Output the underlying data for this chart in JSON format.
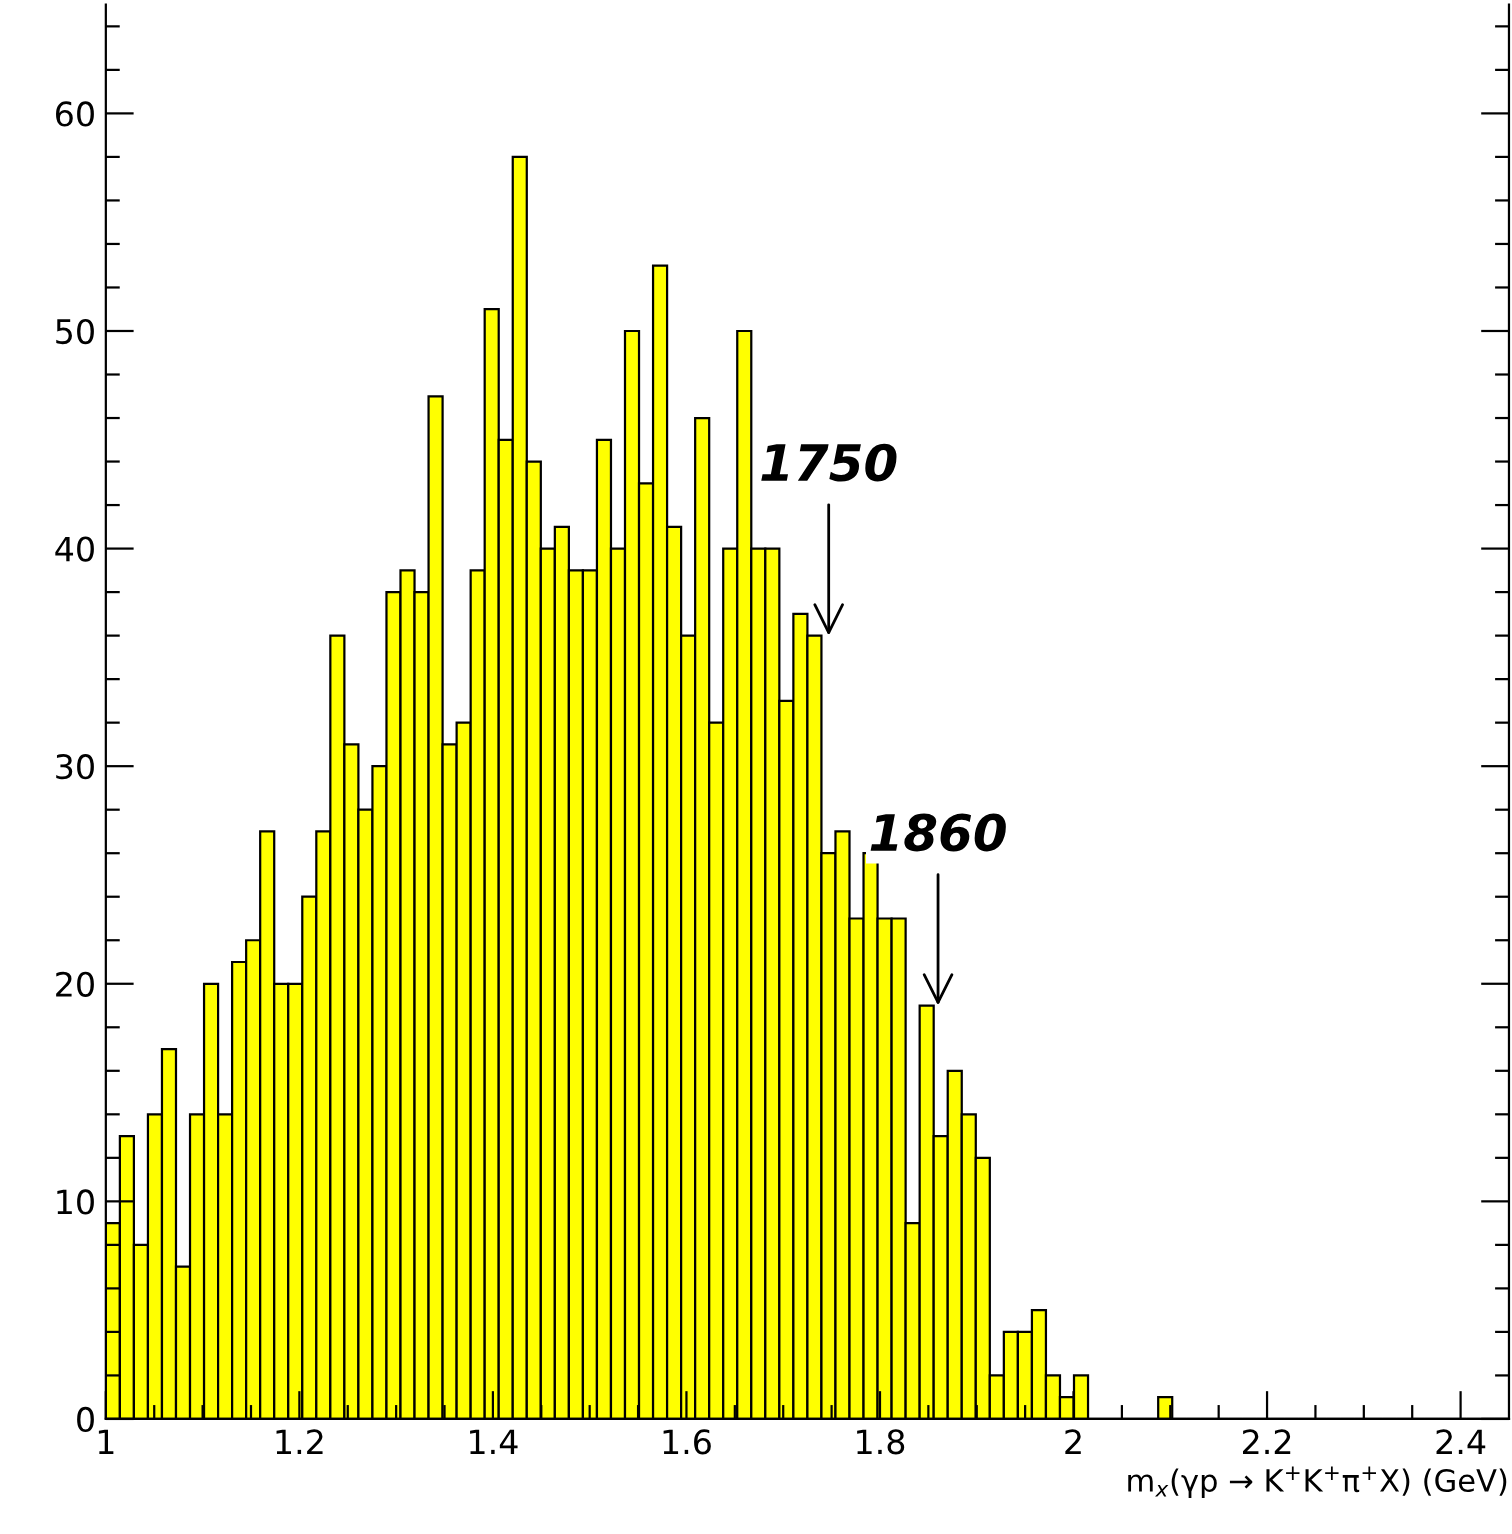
{
  "chart_data": {
    "type": "histogram",
    "xlabel": "m$_{x}$(γp → K$^{+}$K$^{+}$π$^{+}$X) (GeV)",
    "bins": [
      1.0,
      1.0145,
      1.029,
      1.0435,
      1.058,
      1.0725,
      1.087,
      1.1015,
      1.116,
      1.1305,
      1.145,
      1.1595,
      1.174,
      1.1885,
      1.203,
      1.2175,
      1.232,
      1.2465,
      1.261,
      1.2755,
      1.29,
      1.3045,
      1.319,
      1.3335,
      1.348,
      1.3625,
      1.377,
      1.3915,
      1.406,
      1.4205,
      1.435,
      1.4495,
      1.464,
      1.4785,
      1.493,
      1.5075,
      1.522,
      1.5365,
      1.551,
      1.5655,
      1.58,
      1.5945,
      1.609,
      1.6235,
      1.638,
      1.6525,
      1.667,
      1.6815,
      1.696,
      1.7105,
      1.725,
      1.7395,
      1.754,
      1.7685,
      1.783,
      1.7975,
      1.812,
      1.8265,
      1.841,
      1.8555,
      1.87,
      1.8845,
      1.899,
      1.9135,
      1.928,
      1.9425,
      1.957,
      1.9715,
      1.986,
      2.0005,
      2.015,
      2.0295,
      2.044,
      2.0585,
      2.073,
      2.0875,
      2.102,
      2.1165,
      2.131,
      2.1455,
      2.16,
      2.1745,
      2.189,
      2.2035,
      2.218,
      2.2325,
      2.247,
      2.2615,
      2.276,
      2.2905,
      2.305,
      2.3195,
      2.334,
      2.3485,
      2.363,
      2.3775,
      2.392,
      2.4065,
      2.421,
      2.4355,
      2.45
    ],
    "values": [
      9,
      13,
      8,
      14,
      17,
      7,
      14,
      20,
      14,
      21,
      22,
      27,
      20,
      20,
      24,
      27,
      36,
      31,
      28,
      30,
      38,
      39,
      38,
      47,
      31,
      32,
      39,
      51,
      45,
      58,
      44,
      40,
      41,
      39,
      39,
      45,
      40,
      50,
      43,
      53,
      41,
      36,
      46,
      32,
      40,
      50,
      40,
      40,
      33,
      37,
      36,
      26,
      27,
      23,
      26,
      23,
      23,
      9,
      19,
      13,
      16,
      14,
      12,
      2,
      4,
      4,
      5,
      2,
      1,
      2,
      0,
      0,
      0,
      0,
      0,
      1,
      0,
      0,
      0,
      0,
      0,
      0,
      0,
      0,
      0,
      0,
      0,
      0,
      0,
      0,
      0,
      0,
      0,
      0,
      0,
      0,
      0,
      0,
      0,
      0
    ],
    "color": "#ffff00",
    "xlim": [
      1,
      2.45
    ],
    "ylim": [
      0,
      65
    ],
    "xticks": [
      1,
      {
        "value": 1.05,
        "label": null
      },
      {
        "value": 1.1,
        "label": null
      },
      {
        "value": 1.15,
        "label": null
      },
      1.2,
      {
        "value": 1.25,
        "label": null
      },
      {
        "value": 1.3,
        "label": null
      },
      {
        "value": 1.35,
        "label": null
      },
      1.4,
      {
        "value": 1.45,
        "label": null
      },
      {
        "value": 1.5,
        "label": null
      },
      {
        "value": 1.55,
        "label": null
      },
      1.6,
      {
        "value": 1.65,
        "label": null
      },
      {
        "value": 1.7,
        "label": null
      },
      {
        "value": 1.75,
        "label": null
      },
      1.8,
      {
        "value": 1.85,
        "label": null
      },
      {
        "value": 1.9,
        "label": null
      },
      {
        "value": 1.95,
        "label": null
      },
      2,
      {
        "value": 2.05,
        "label": null
      },
      {
        "value": 2.1,
        "label": null
      },
      {
        "value": 2.15,
        "label": null
      },
      2.2,
      {
        "value": 2.25,
        "label": null
      },
      {
        "value": 2.3,
        "label": null
      },
      {
        "value": 2.35,
        "label": null
      },
      2.4
    ],
    "yticks": [
      0,
      {
        "value": 2,
        "label": null
      },
      {
        "value": 4,
        "label": null
      },
      {
        "value": 6,
        "label": null
      },
      {
        "value": 8,
        "label": null
      },
      10,
      {
        "value": 12,
        "label": null
      },
      {
        "value": 14,
        "label": null
      },
      {
        "value": 16,
        "label": null
      },
      {
        "value": 18,
        "label": null
      },
      20,
      {
        "value": 22,
        "label": null
      },
      {
        "value": 24,
        "label": null
      },
      {
        "value": 26,
        "label": null
      },
      {
        "value": 28,
        "label": null
      },
      30,
      {
        "value": 32,
        "label": null
      },
      {
        "value": 34,
        "label": null
      },
      {
        "value": 36,
        "label": null
      },
      {
        "value": 38,
        "label": null
      },
      40,
      {
        "value": 42,
        "label": null
      },
      {
        "value": 44,
        "label": null
      },
      {
        "value": 46,
        "label": null
      },
      {
        "value": 48,
        "label": null
      },
      50,
      {
        "value": 52,
        "label": null
      },
      {
        "value": 54,
        "label": null
      },
      {
        "value": 56,
        "label": null
      },
      {
        "value": 58,
        "label": null
      },
      60,
      {
        "value": 62,
        "label": null
      },
      {
        "value": 64,
        "label": null
      }
    ],
    "grid": false,
    "annotations": [
      {
        "text": "1750",
        "x": 1.747,
        "y": 36
      },
      {
        "text": "1860",
        "x": 1.86,
        "y": 19
      }
    ]
  }
}
